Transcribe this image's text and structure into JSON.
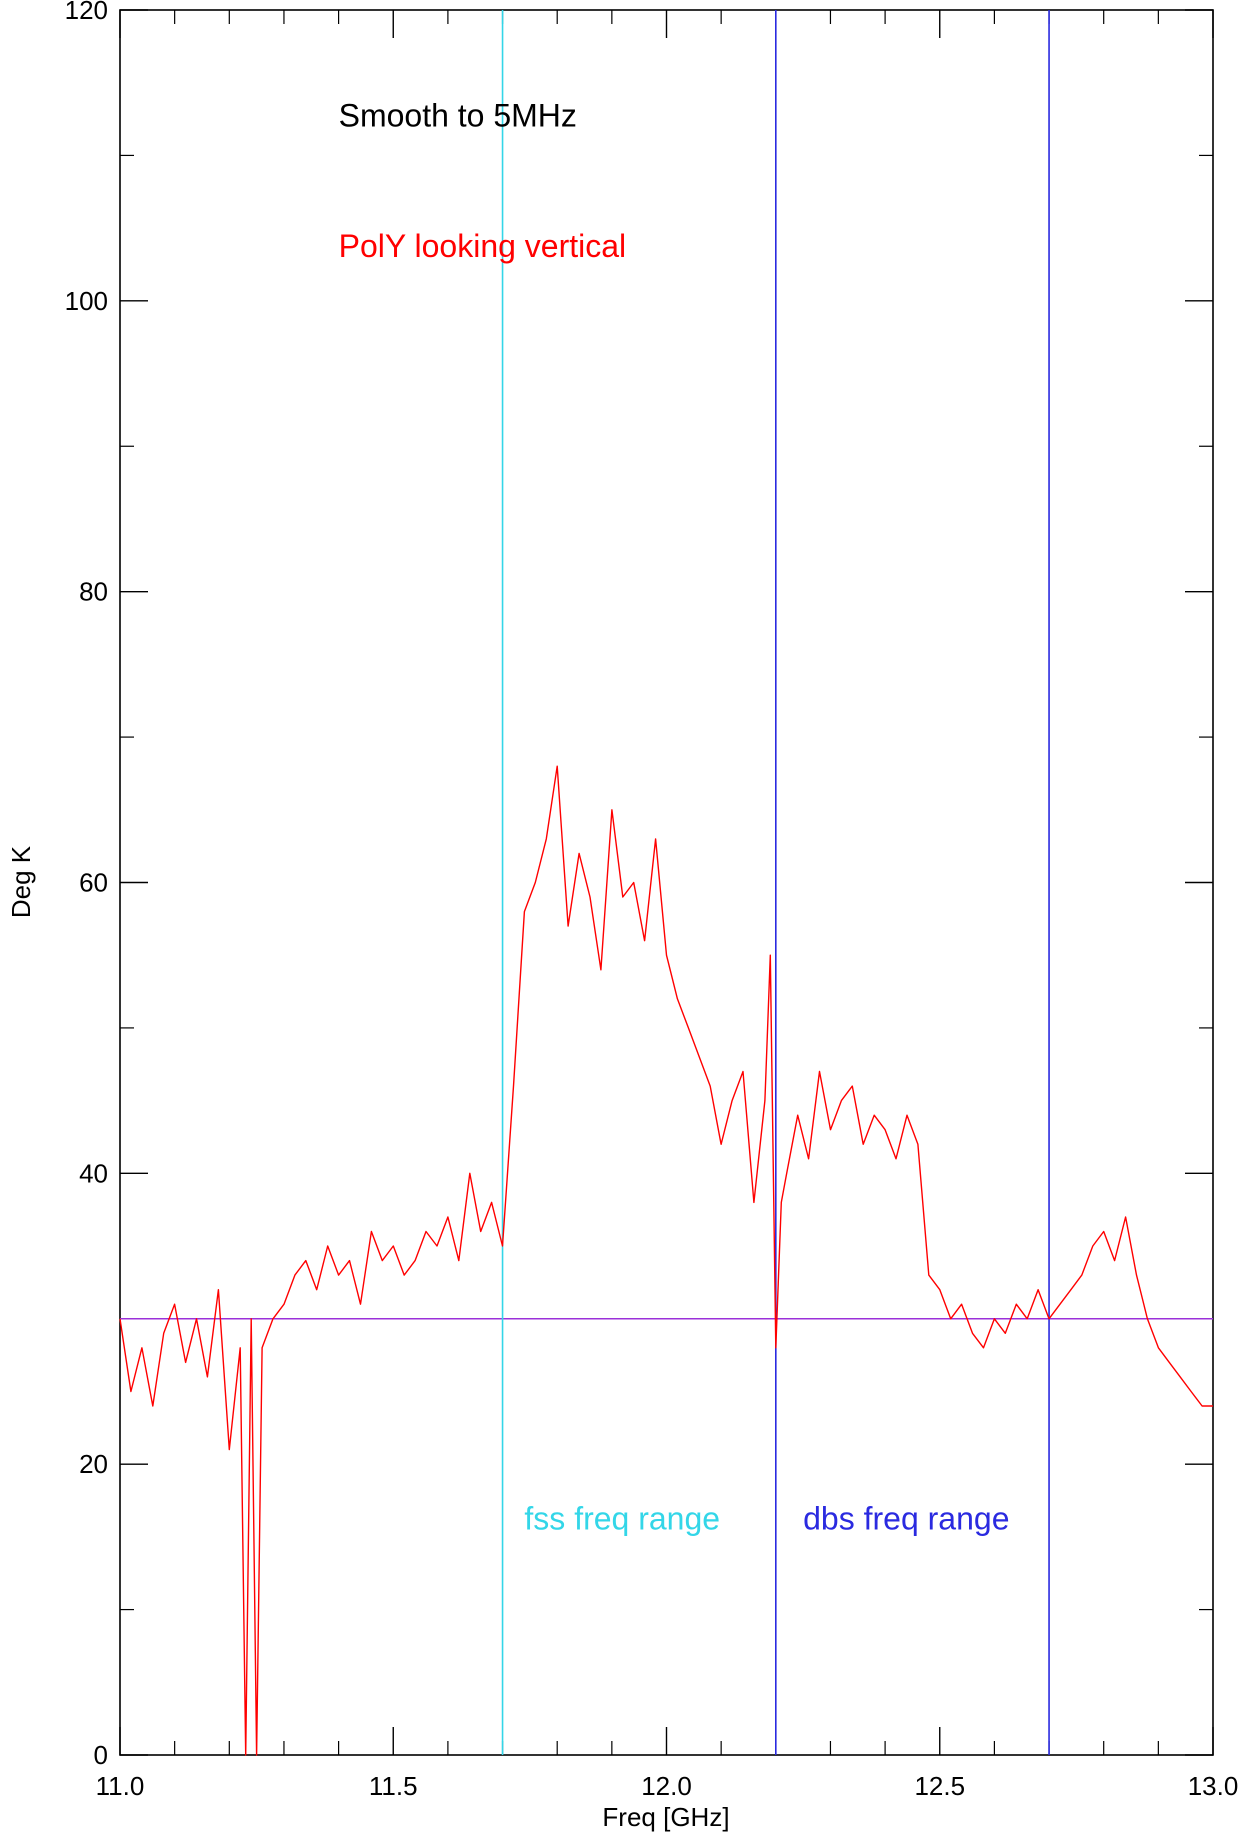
{
  "chart_data": {
    "type": "line",
    "xlabel": "Freq [GHz]",
    "ylabel": "Deg K",
    "xlim": [
      11.0,
      13.0
    ],
    "ylim": [
      0,
      120
    ],
    "x_ticks": [
      11.0,
      11.5,
      12.0,
      12.5,
      13.0
    ],
    "x_tick_labels": [
      "11.0",
      "11.5",
      "12.0",
      "12.5",
      "13.0"
    ],
    "y_ticks": [
      0,
      20,
      40,
      60,
      80,
      100,
      120
    ],
    "y_tick_labels": [
      "0",
      "20",
      "40",
      "60",
      "80",
      "100",
      "120"
    ],
    "grid": false,
    "annotations": [
      {
        "text": "Smooth to 5MHz",
        "color": "#000000"
      },
      {
        "text": "PolY looking vertical",
        "color": "#ff0000"
      },
      {
        "text": "fss freq range",
        "color": "#33d6e8"
      },
      {
        "text": "dbs freq range",
        "color": "#2a2ae0"
      }
    ],
    "annotation_positions_data": [
      [
        11.4,
        112
      ],
      [
        11.4,
        103
      ],
      [
        11.74,
        15.5
      ],
      [
        12.25,
        15.5
      ]
    ],
    "hline": {
      "y": 30,
      "color": "#9b30d9"
    },
    "vlines": [
      {
        "x": 11.7,
        "color": "#33d6e8"
      },
      {
        "x": 12.2,
        "color": "#2a2ae0"
      },
      {
        "x": 12.7,
        "color": "#2a2ae0"
      }
    ],
    "series": [
      {
        "color": "#ff0000",
        "x": [
          11.0,
          11.02,
          11.04,
          11.06,
          11.08,
          11.1,
          11.12,
          11.14,
          11.16,
          11.18,
          11.2,
          11.22,
          11.23,
          11.24,
          11.25,
          11.26,
          11.28,
          11.3,
          11.32,
          11.34,
          11.36,
          11.38,
          11.4,
          11.42,
          11.44,
          11.46,
          11.48,
          11.5,
          11.52,
          11.54,
          11.56,
          11.58,
          11.6,
          11.62,
          11.64,
          11.66,
          11.68,
          11.7,
          11.72,
          11.74,
          11.76,
          11.78,
          11.8,
          11.82,
          11.84,
          11.86,
          11.88,
          11.9,
          11.92,
          11.94,
          11.96,
          11.98,
          12.0,
          12.02,
          12.04,
          12.06,
          12.08,
          12.1,
          12.12,
          12.14,
          12.16,
          12.18,
          12.19,
          12.2,
          12.21,
          12.22,
          12.24,
          12.26,
          12.28,
          12.3,
          12.32,
          12.34,
          12.36,
          12.38,
          12.4,
          12.42,
          12.44,
          12.46,
          12.48,
          12.5,
          12.52,
          12.54,
          12.56,
          12.58,
          12.6,
          12.62,
          12.64,
          12.66,
          12.68,
          12.7,
          12.72,
          12.74,
          12.76,
          12.78,
          12.8,
          12.82,
          12.84,
          12.86,
          12.88,
          12.9,
          12.92,
          12.94,
          12.96,
          12.98,
          13.0
        ],
        "y": [
          30,
          25,
          28,
          24,
          29,
          31,
          27,
          30,
          26,
          32,
          21,
          28,
          0,
          30,
          0,
          28,
          30,
          31,
          33,
          34,
          32,
          35,
          33,
          34,
          31,
          36,
          34,
          35,
          33,
          34,
          36,
          35,
          37,
          34,
          40,
          36,
          38,
          35,
          46,
          58,
          60,
          63,
          68,
          57,
          62,
          59,
          54,
          65,
          59,
          60,
          56,
          63,
          55,
          52,
          50,
          48,
          46,
          42,
          45,
          47,
          38,
          45,
          55,
          28,
          38,
          40,
          44,
          41,
          47,
          43,
          45,
          46,
          42,
          44,
          43,
          41,
          44,
          42,
          33,
          32,
          30,
          31,
          29,
          28,
          30,
          29,
          31,
          30,
          32,
          30,
          31,
          32,
          33,
          35,
          36,
          34,
          37,
          33,
          30,
          28,
          27,
          26,
          25,
          24,
          24
        ]
      }
    ]
  }
}
